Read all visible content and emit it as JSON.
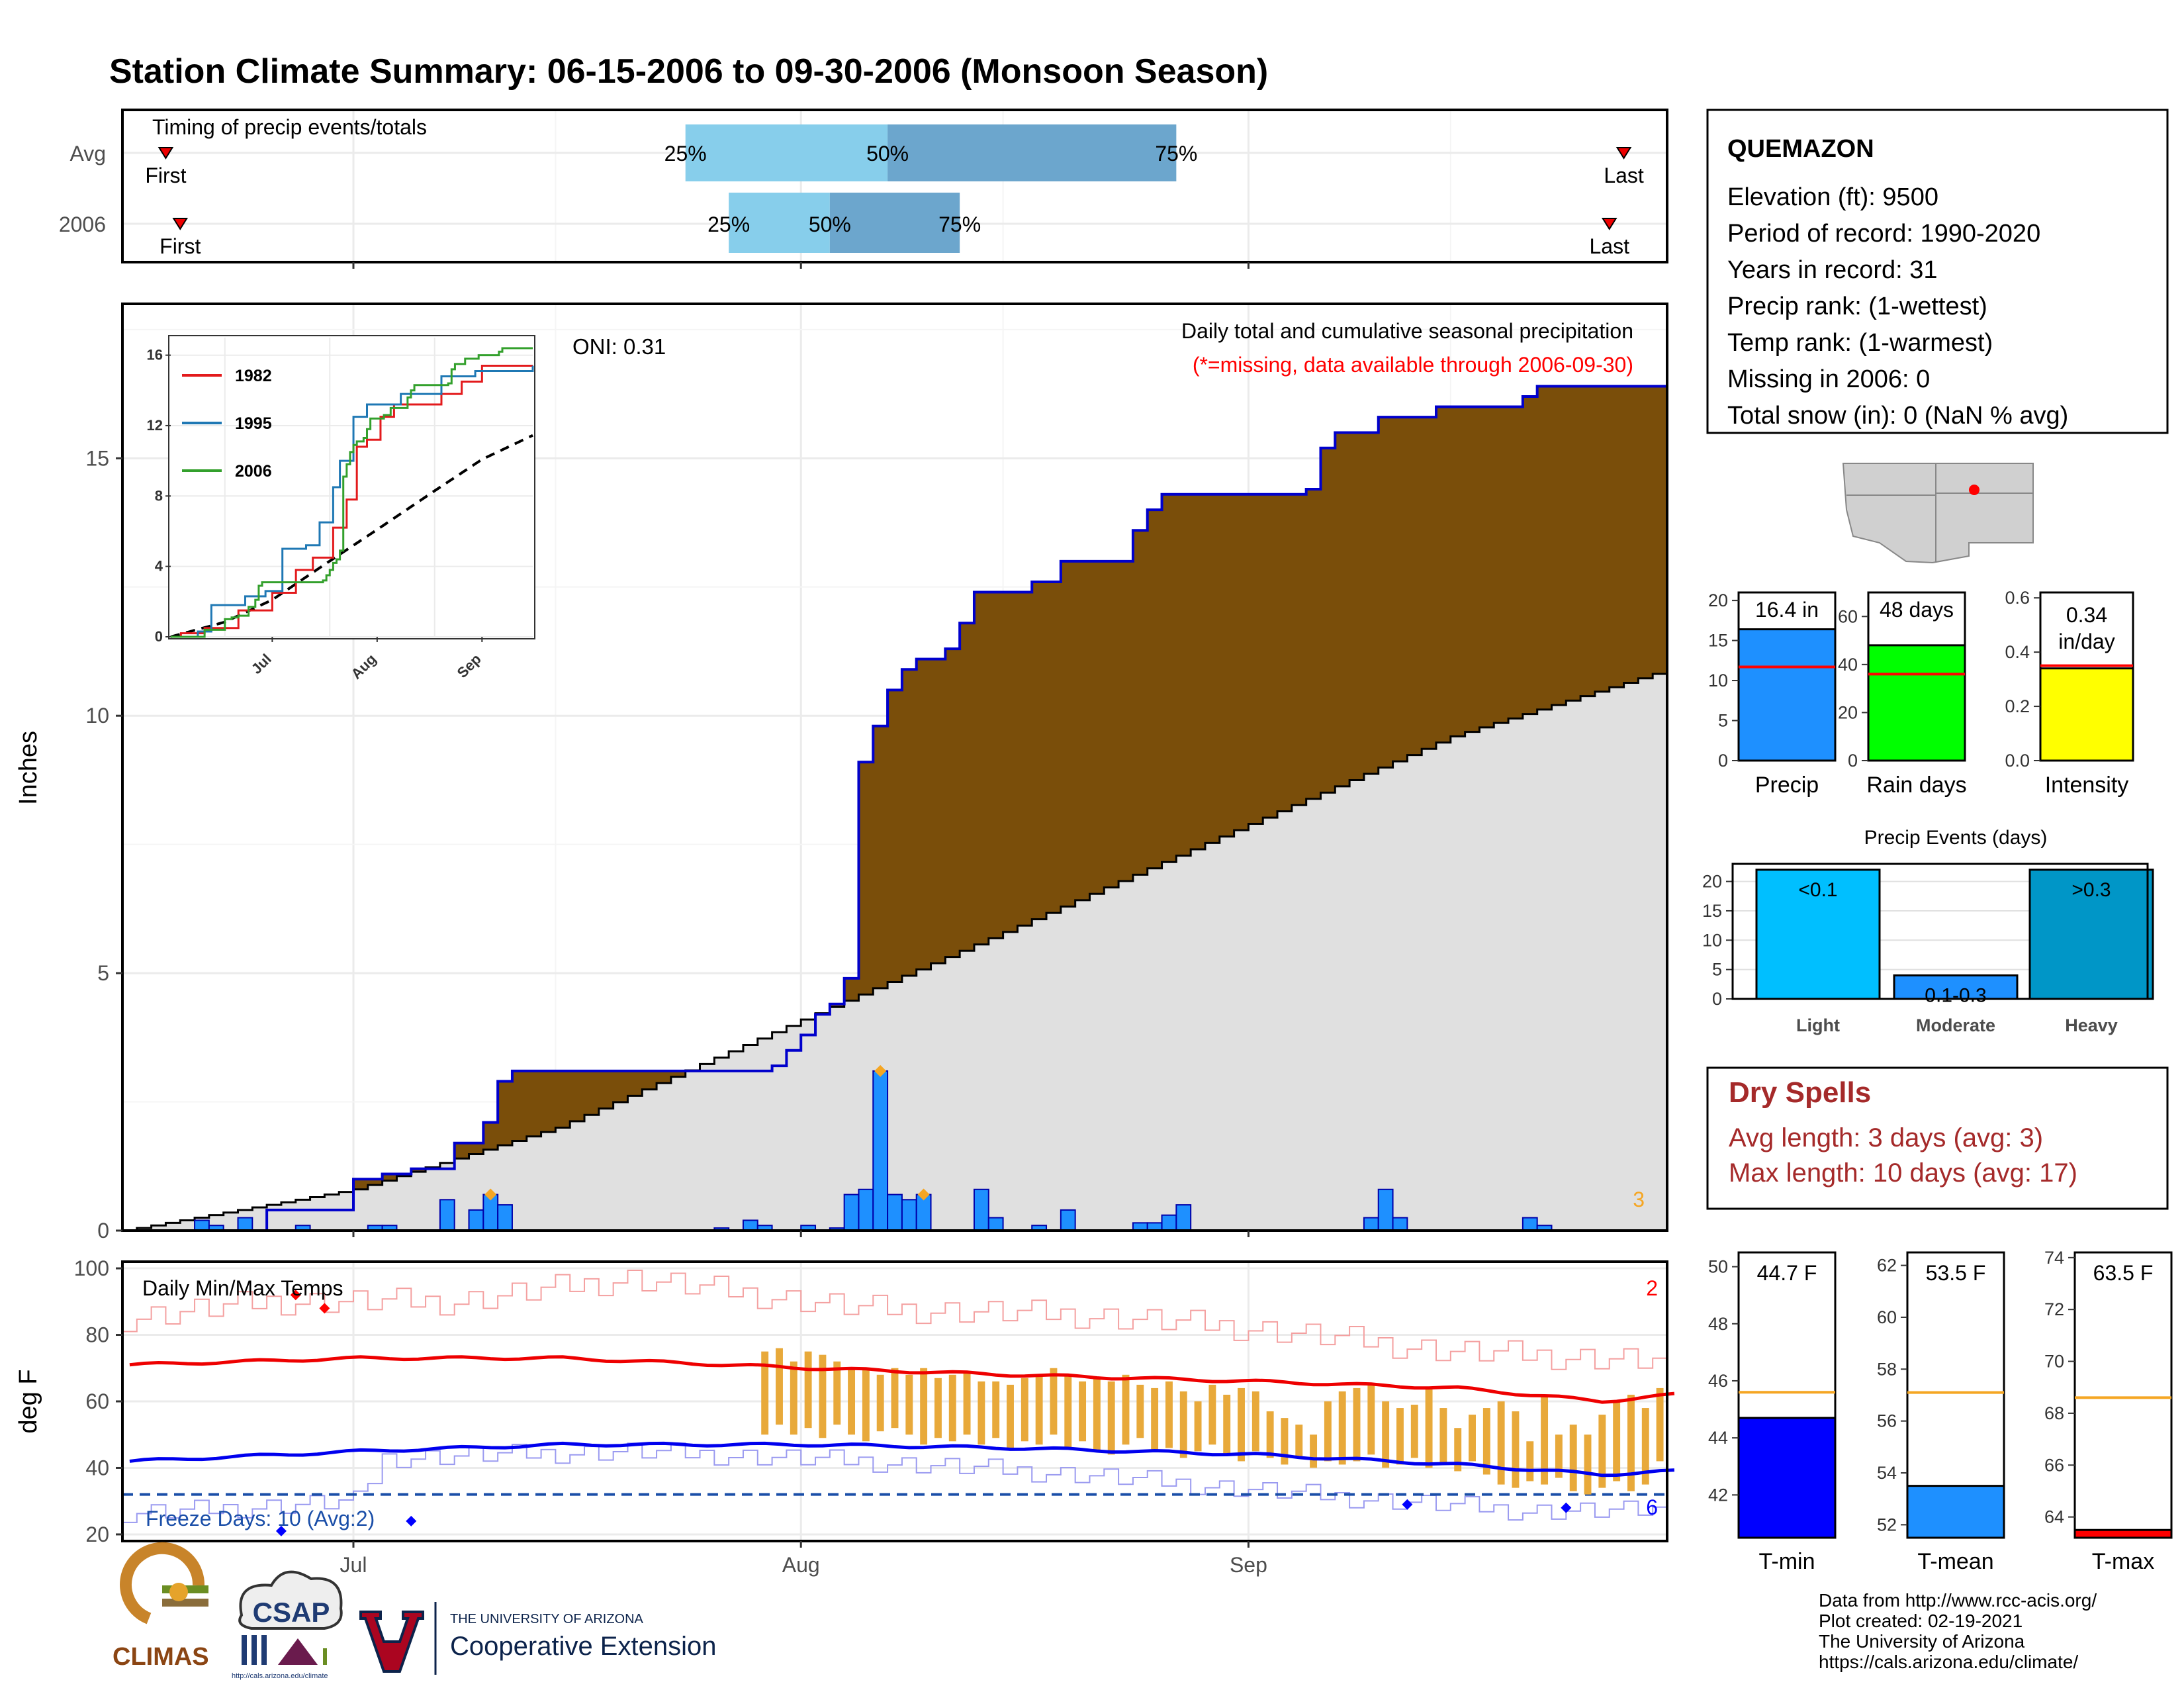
{
  "title": "Station Climate Summary: 06-15-2006 to 09-30-2006 (Monsoon Season)",
  "colors": {
    "title": "#ff0000",
    "green_fill": "#008000",
    "blue_line": "#0000cc",
    "brown_fill": "#7a4e0a",
    "grey_fill": "#e0e0e0",
    "daily_bar": "#1e90ff",
    "orange": "#f5a623",
    "red_line": "#ee0000",
    "dry_spells": "#a52a2a",
    "precip_bar": "#1e90ff",
    "raindays_bar": "#00ff00",
    "intensity_bar": "#ffff00",
    "events_light": "#00bfff",
    "events_heavy": "#0096c7"
  },
  "timing": {
    "label": "Timing of precip events/totals",
    "rows": [
      "Avg",
      "2006"
    ],
    "pct_labels": [
      "25%",
      "50%",
      "75%"
    ],
    "first_label": "First",
    "last_label": "Last",
    "avg": {
      "first": "2006-06-18",
      "p25": "2006-07-24",
      "p50": "2006-08-07",
      "p75": "2006-08-27",
      "last": "2006-09-27"
    },
    "y2006": {
      "first": "2006-06-19",
      "p25": "2006-07-27",
      "p50": "2006-08-03",
      "p75": "2006-08-12",
      "last": "2006-09-26"
    }
  },
  "main_chart": {
    "ylabel": "Inches",
    "yticks": [
      0,
      5,
      10,
      15
    ],
    "ylim": [
      0,
      18
    ],
    "xticks": [
      "Jul",
      "Aug",
      "Sep"
    ],
    "oni": "ONI: 0.31",
    "caption": "Daily total and cumulative seasonal precipitation",
    "missing_note": "(*=missing, data available through 2006-09-30)",
    "corner_count": "3"
  },
  "inset": {
    "yticks": [
      "0",
      "4",
      "8",
      "12",
      "16"
    ],
    "xticks": [
      "Jul",
      "Aug",
      "Sep"
    ],
    "legend": [
      {
        "name": "1982",
        "color": "#e31a1c"
      },
      {
        "name": "1995",
        "color": "#1f78b4"
      },
      {
        "name": "2006",
        "color": "#33a02c"
      }
    ]
  },
  "temp_chart": {
    "label": "Daily Min/Max Temps",
    "ylabel": "deg F",
    "yticks": [
      20,
      40,
      60,
      80,
      100
    ],
    "ylim": [
      18,
      102
    ],
    "freeze_line": 32,
    "freeze_note": "Freeze Days: 10 (Avg:2)",
    "max_count": "2",
    "min_count": "6"
  },
  "station": {
    "name": "QUEMAZON",
    "lines": [
      "Elevation (ft): 9500",
      "Period of record: 1990-2020",
      "Years in record: 31",
      "Precip rank:  (1-wettest)",
      "Temp rank:  (1-warmest)",
      "Missing in 2006: 0",
      "Total snow (in): 0 (NaN % avg)"
    ]
  },
  "summary_bars": [
    {
      "label": "Precip",
      "value_label": "16.4 in",
      "value": 16.4,
      "avg": 11.7,
      "ymax": 21,
      "ticks": [
        "0",
        "5",
        "10",
        "15",
        "20"
      ],
      "tick_values": [
        0,
        5,
        10,
        15,
        20
      ],
      "color": "#1e90ff",
      "avg_color": "#ff0000"
    },
    {
      "label": "Rain days",
      "value_label": "48 days",
      "value": 48,
      "avg": 36,
      "ymax": 70,
      "ticks": [
        "0",
        "20",
        "40",
        "60"
      ],
      "tick_values": [
        0,
        20,
        40,
        60
      ],
      "color": "#00ff00",
      "avg_color": "#ff0000"
    },
    {
      "label": "Intensity",
      "value_label": "0.34\nin/day",
      "value": 0.34,
      "avg": 0.35,
      "ymax": 0.62,
      "ticks": [
        "0.0",
        "0.2",
        "0.4",
        "0.6"
      ],
      "tick_values": [
        0,
        0.2,
        0.4,
        0.6
      ],
      "color": "#ffff00",
      "avg_color": "#ff0000"
    }
  ],
  "precip_events": {
    "title": "Precip Events (days)",
    "categories": [
      "Light",
      "Moderate",
      "Heavy"
    ],
    "bar_labels": [
      "<0.1",
      "0.1-0.3",
      ">0.3"
    ],
    "values": [
      22,
      4,
      22
    ],
    "yticks": [
      0,
      5,
      10,
      15,
      20
    ],
    "ymax": 23,
    "colors": [
      "#00bfff",
      "#1e90ff",
      "#0096c7"
    ]
  },
  "dry_spells": {
    "title": "Dry Spells",
    "lines": [
      "Avg length: 3 days (avg: 3)",
      "Max length: 10 days (avg: 17)"
    ]
  },
  "temp_bars": [
    {
      "label": "T-min",
      "value_label": "44.7 F",
      "value": 44.7,
      "avg": 45.6,
      "ylim": [
        40.5,
        50.5
      ],
      "ticks": [
        "42",
        "44",
        "46",
        "48",
        "50"
      ],
      "tick_values": [
        42,
        44,
        46,
        48,
        50
      ],
      "color": "#0000ff"
    },
    {
      "label": "T-mean",
      "value_label": "53.5 F",
      "value": 53.5,
      "avg": 57.1,
      "ylim": [
        51.5,
        62.5
      ],
      "ticks": [
        "52",
        "54",
        "56",
        "58",
        "60",
        "62"
      ],
      "tick_values": [
        52,
        54,
        56,
        58,
        60,
        62
      ],
      "color": "#1e90ff"
    },
    {
      "label": "T-max",
      "value_label": "63.5 F",
      "value": 63.5,
      "avg": 68.6,
      "ylim": [
        63.2,
        74.2
      ],
      "ticks": [
        "64",
        "66",
        "68",
        "70",
        "72",
        "74"
      ],
      "tick_values": [
        64,
        66,
        68,
        70,
        72,
        74
      ],
      "color": "#ff0000"
    }
  ],
  "footer": {
    "lines": [
      "Data from http://www.rcc-acis.org/",
      "Plot created: 02-19-2021",
      "The University of Arizona",
      "https://cals.arizona.edu/climate/"
    ],
    "logos": {
      "climas": "CLIMAS",
      "csap": "CSAP",
      "csap_url": "http://cals.arizona.edu/climate",
      "ua_line1": "THE UNIVERSITY OF ARIZONA",
      "ua_line2": "Cooperative Extension"
    }
  },
  "chart_data": [
    {
      "type": "area",
      "x_start": "2006-06-15",
      "x_end": "2006-09-30",
      "cumulative_2006": [
        [
          "2006-06-15",
          0
        ],
        [
          "2006-06-25",
          0.4
        ],
        [
          "2006-07-01",
          1.0
        ],
        [
          "2006-07-03",
          1.1
        ],
        [
          "2006-07-05",
          1.2
        ],
        [
          "2006-07-08",
          1.7
        ],
        [
          "2006-07-10",
          2.1
        ],
        [
          "2006-07-11",
          2.9
        ],
        [
          "2006-07-12",
          3.1
        ],
        [
          "2006-07-30",
          3.2
        ],
        [
          "2006-07-31",
          3.5
        ],
        [
          "2006-08-01",
          3.8
        ],
        [
          "2006-08-02",
          4.2
        ],
        [
          "2006-08-03",
          4.4
        ],
        [
          "2006-08-04",
          4.9
        ],
        [
          "2006-08-05",
          9.1
        ],
        [
          "2006-08-06",
          9.8
        ],
        [
          "2006-08-07",
          10.5
        ],
        [
          "2006-08-08",
          10.9
        ],
        [
          "2006-08-09",
          11.1
        ],
        [
          "2006-08-11",
          11.3
        ],
        [
          "2006-08-12",
          11.8
        ],
        [
          "2006-08-13",
          12.4
        ],
        [
          "2006-08-17",
          12.6
        ],
        [
          "2006-08-19",
          13.0
        ],
        [
          "2006-08-24",
          13.6
        ],
        [
          "2006-08-25",
          14.0
        ],
        [
          "2006-08-26",
          14.3
        ],
        [
          "2006-09-05",
          14.4
        ],
        [
          "2006-09-06",
          15.2
        ],
        [
          "2006-09-07",
          15.5
        ],
        [
          "2006-09-10",
          15.8
        ],
        [
          "2006-09-14",
          16.0
        ],
        [
          "2006-09-20",
          16.2
        ],
        [
          "2006-09-21",
          16.4
        ],
        [
          "2006-09-30",
          16.4
        ]
      ],
      "average_cumulative": [
        [
          "2006-06-15",
          0
        ],
        [
          "2006-07-01",
          0.8
        ],
        [
          "2006-07-15",
          2.0
        ],
        [
          "2006-08-01",
          4.1
        ],
        [
          "2006-08-15",
          5.8
        ],
        [
          "2006-09-01",
          7.9
        ],
        [
          "2006-09-15",
          9.6
        ],
        [
          "2006-09-30",
          10.9
        ]
      ],
      "daily_precip": [
        [
          "2006-06-20",
          0.2
        ],
        [
          "2006-06-21",
          0.1
        ],
        [
          "2006-06-23",
          0.25
        ],
        [
          "2006-06-27",
          0.1
        ],
        [
          "2006-07-02",
          0.1
        ],
        [
          "2006-07-03",
          0.1
        ],
        [
          "2006-07-07",
          0.6
        ],
        [
          "2006-07-09",
          0.4
        ],
        [
          "2006-07-10",
          0.7
        ],
        [
          "2006-07-11",
          0.5
        ],
        [
          "2006-07-26",
          0.05
        ],
        [
          "2006-07-28",
          0.2
        ],
        [
          "2006-07-29",
          0.1
        ],
        [
          "2006-08-01",
          0.1
        ],
        [
          "2006-08-03",
          0.05
        ],
        [
          "2006-08-04",
          0.7
        ],
        [
          "2006-08-05",
          0.8
        ],
        [
          "2006-08-06",
          3.1
        ],
        [
          "2006-08-07",
          0.7
        ],
        [
          "2006-08-08",
          0.6
        ],
        [
          "2006-08-09",
          0.7
        ],
        [
          "2006-08-13",
          0.8
        ],
        [
          "2006-08-14",
          0.25
        ],
        [
          "2006-08-17",
          0.1
        ],
        [
          "2006-08-19",
          0.4
        ],
        [
          "2006-08-24",
          0.15
        ],
        [
          "2006-08-25",
          0.15
        ],
        [
          "2006-08-26",
          0.3
        ],
        [
          "2006-08-27",
          0.5
        ],
        [
          "2006-09-09",
          0.25
        ],
        [
          "2006-09-10",
          0.8
        ],
        [
          "2006-09-11",
          0.25
        ],
        [
          "2006-09-20",
          0.25
        ],
        [
          "2006-09-21",
          0.1
        ]
      ],
      "extreme_markers": [
        "2006-07-10",
        "2006-08-06",
        "2006-08-09"
      ]
    },
    {
      "type": "line",
      "series": [
        {
          "name": "",
          "points": [
            [
              "2006-06-15",
              71
            ],
            [
              "2006-07-01",
              73
            ],
            [
              "2006-07-15",
              73
            ],
            [
              "2006-08-01",
              70
            ],
            [
              "2006-08-15",
              68
            ],
            [
              "2006-09-01",
              66
            ],
            [
              "2006-09-15",
              64
            ],
            [
              "2006-09-25",
              60
            ],
            [
              "2006-09-30",
              62
            ]
          ]
        },
        {
          "name": "",
          "points": [
            [
              "2006-06-15",
              42
            ],
            [
              "2006-07-01",
              45
            ],
            [
              "2006-07-15",
              47
            ],
            [
              "2006-08-01",
              47
            ],
            [
              "2006-08-15",
              46
            ],
            [
              "2006-09-01",
              44
            ],
            [
              "2006-09-15",
              41
            ],
            [
              "2006-09-25",
              38
            ],
            [
              "2006-09-30",
              39
            ]
          ]
        }
      ],
      "record_max_sample": [
        [
          "2006-06-15",
          85
        ],
        [
          "2006-06-25",
          90
        ],
        [
          "2006-07-08",
          90
        ],
        [
          "2006-07-20",
          97
        ],
        [
          "2006-08-05",
          88
        ],
        [
          "2006-08-20",
          86
        ],
        [
          "2006-09-01",
          82
        ],
        [
          "2006-09-15",
          75
        ],
        [
          "2006-09-30",
          72
        ]
      ],
      "record_min_sample": [
        [
          "2006-06-15",
          26
        ],
        [
          "2006-07-01",
          30
        ],
        [
          "2006-07-03",
          43
        ],
        [
          "2006-07-20",
          45
        ],
        [
          "2006-08-05",
          42
        ],
        [
          "2006-08-20",
          38
        ],
        [
          "2006-09-05",
          32
        ],
        [
          "2006-09-20",
          27
        ],
        [
          "2006-09-30",
          27
        ]
      ],
      "temp_range_start": "2006-07-29",
      "temp_range_end": "2006-09-30",
      "temp_range": [
        [
          50,
          75
        ],
        [
          53,
          76
        ],
        [
          50,
          72
        ],
        [
          52,
          75
        ],
        [
          49,
          74
        ],
        [
          53,
          72
        ],
        [
          50,
          70
        ],
        [
          48,
          70
        ],
        [
          51,
          68
        ],
        [
          52,
          70
        ],
        [
          50,
          68
        ],
        [
          47,
          70
        ],
        [
          49,
          67
        ],
        [
          48,
          68
        ],
        [
          50,
          69
        ],
        [
          47,
          66
        ],
        [
          49,
          66
        ],
        [
          46,
          65
        ],
        [
          48,
          67
        ],
        [
          47,
          68
        ],
        [
          50,
          70
        ],
        [
          46,
          68
        ],
        [
          48,
          66
        ],
        [
          45,
          67
        ],
        [
          44,
          66
        ],
        [
          47,
          68
        ],
        [
          49,
          65
        ],
        [
          45,
          64
        ],
        [
          46,
          66
        ],
        [
          43,
          63
        ],
        [
          45,
          60
        ],
        [
          47,
          65
        ],
        [
          44,
          62
        ],
        [
          42,
          64
        ],
        [
          45,
          63
        ],
        [
          43,
          57
        ],
        [
          41,
          55
        ],
        [
          43,
          53
        ],
        [
          40,
          50
        ],
        [
          42,
          60
        ],
        [
          41,
          63
        ],
        [
          42,
          64
        ],
        [
          44,
          65
        ],
        [
          40,
          60
        ],
        [
          41,
          58
        ],
        [
          43,
          59
        ],
        [
          40,
          64
        ],
        [
          41,
          58
        ],
        [
          39,
          52
        ],
        [
          42,
          56
        ],
        [
          38,
          58
        ],
        [
          35,
          60
        ],
        [
          34,
          57
        ],
        [
          36,
          48
        ],
        [
          35,
          62
        ],
        [
          37,
          50
        ],
        [
          33,
          53
        ],
        [
          32,
          50
        ],
        [
          34,
          56
        ],
        [
          36,
          60
        ],
        [
          33,
          62
        ],
        [
          35,
          58
        ],
        [
          42,
          64
        ]
      ]
    }
  ]
}
